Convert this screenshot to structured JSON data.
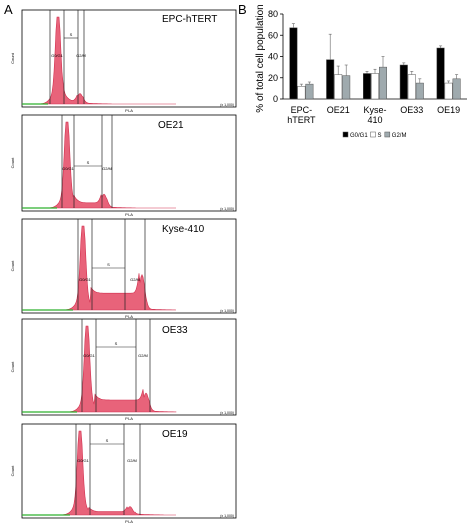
{
  "figure": {
    "panel_a_letter": "A",
    "panel_b_letter": "B"
  },
  "histograms": [
    {
      "title": "EPC-hTERT",
      "gate_labels": [
        "G0/G1",
        "S",
        "G2/M"
      ]
    },
    {
      "title": "OE21",
      "gate_labels": [
        "G0/G1",
        "S",
        "G2/M"
      ]
    },
    {
      "title": "Kyse-410",
      "gate_labels": [
        "G0/G1",
        "S",
        "G2/M"
      ]
    },
    {
      "title": "OE33",
      "gate_labels": [
        "G0/G1",
        "S",
        "G2/M"
      ]
    },
    {
      "title": "OE19",
      "gate_labels": [
        "G0/G1",
        "S",
        "G2/M"
      ]
    }
  ],
  "histogram_axis": {
    "xlabel": "PI-A",
    "ylabel": "Count",
    "xmax_label": "(x 1,000)"
  },
  "colors": {
    "histogram_fill": "#e8637a",
    "histogram_line": "#d23150",
    "baseline": "#2fb02f",
    "g0g1": "#000000",
    "s": "#ffffff",
    "g2m": "#9faaae"
  },
  "chart_data": {
    "type": "bar",
    "categories": [
      "EPC-\nhTERT",
      "OE21",
      "Kyse-\n410",
      "OE33",
      "OE19"
    ],
    "series": [
      {
        "name": "G0/G1",
        "values": [
          67,
          37,
          24,
          32,
          48
        ],
        "errors": [
          4,
          24,
          2,
          2,
          2
        ]
      },
      {
        "name": "S",
        "values": [
          12,
          23,
          24,
          23,
          15
        ],
        "errors": [
          2,
          8,
          4,
          3,
          2
        ]
      },
      {
        "name": "G2/M",
        "values": [
          14,
          22,
          30,
          15,
          19
        ],
        "errors": [
          2,
          10,
          10,
          4,
          4
        ]
      }
    ],
    "ylabel": "% of total cell population",
    "ylim": [
      0,
      80
    ],
    "yticks": [
      0,
      20,
      40,
      60,
      80
    ],
    "legend_position": "bottom"
  }
}
